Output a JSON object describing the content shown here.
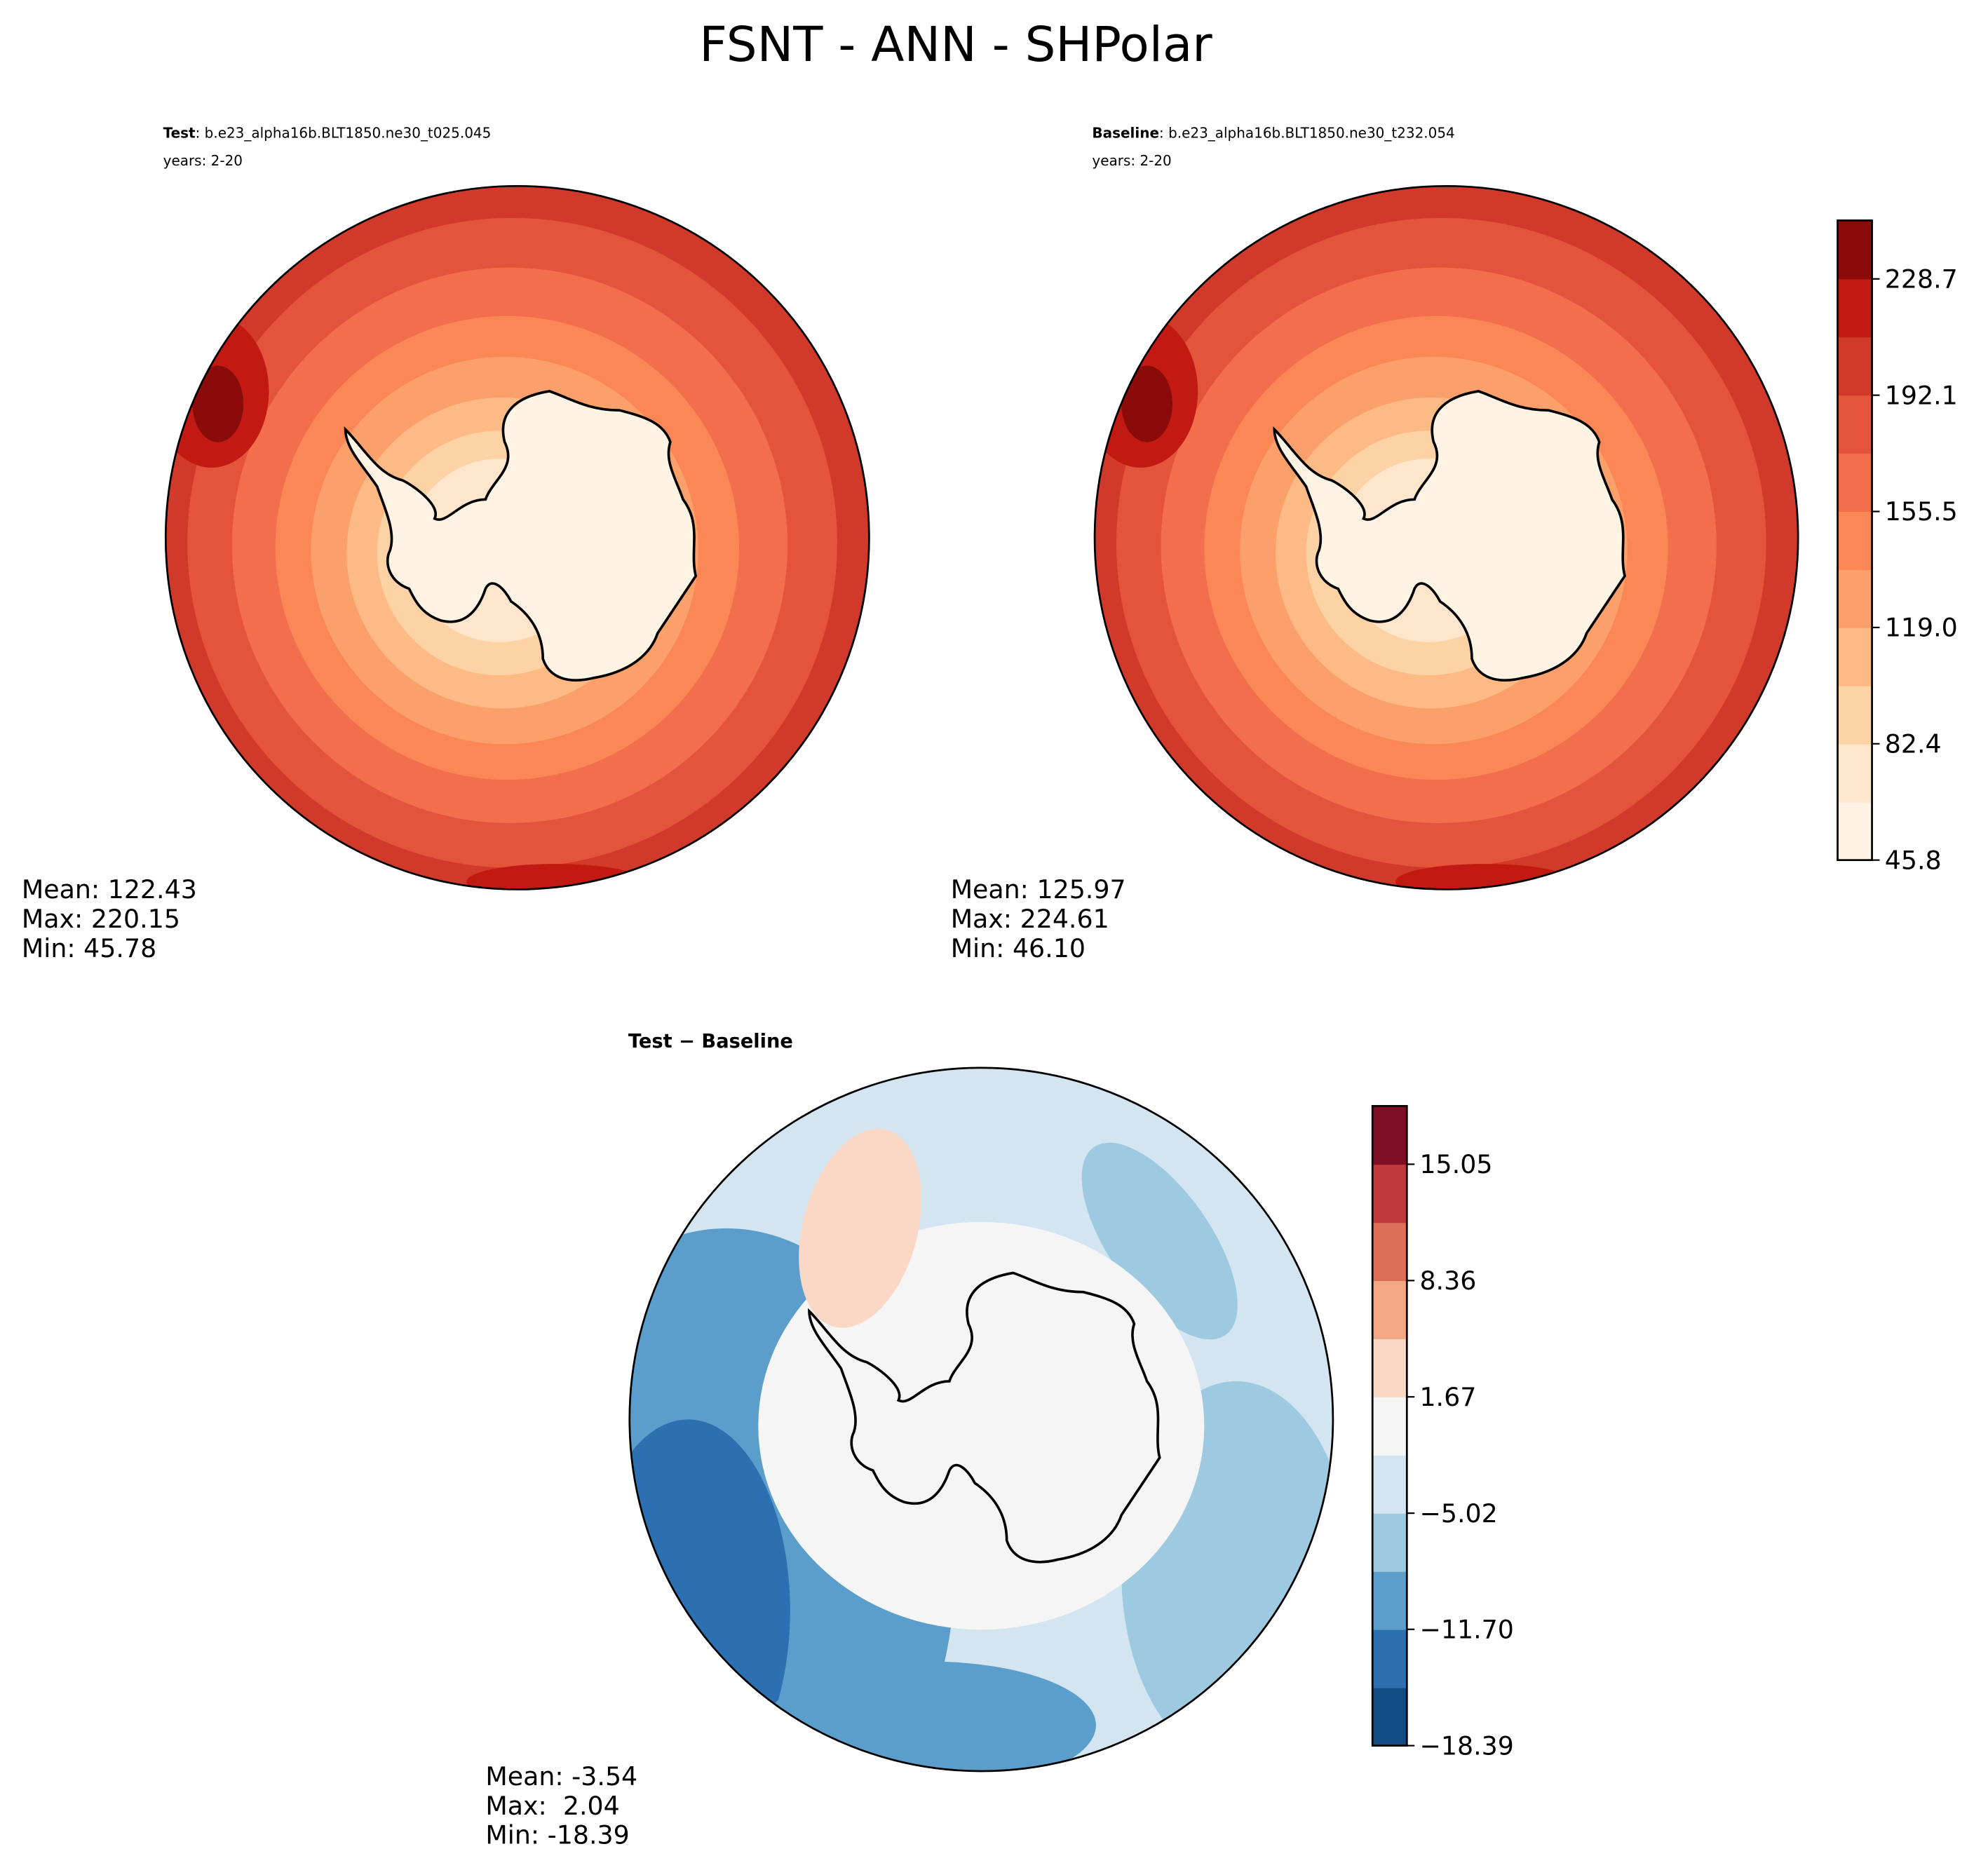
{
  "title": "FSNT - ANN - SHPolar",
  "chart_data": [
    {
      "type": "polar-contour",
      "label": "Test",
      "case": ": b.e23_alpha16b.BLT1850.ne30_t025.045",
      "years": "years: 2-20",
      "stats": [
        "Mean: 122.43",
        "Max: 220.15",
        "Min: 45.78"
      ],
      "colorbar": false,
      "colors": [
        "#fff3e3",
        "#fee6cc",
        "#fdd3a6",
        "#fdba84",
        "#fca06b",
        "#fb8656",
        "#f26e4c",
        "#e4533c",
        "#d1392b",
        "#c21a12",
        "#8b0a0a"
      ]
    },
    {
      "type": "polar-contour",
      "label": "Baseline",
      "case": ": b.e23_alpha16b.BLT1850.ne30_t232.054",
      "years": "years: 2-20",
      "stats": [
        "Mean: 125.97",
        "Max: 224.61",
        "Min: 46.10"
      ],
      "colorbar": true,
      "colors": [
        "#fff3e3",
        "#fee6cc",
        "#fdd3a6",
        "#fdba84",
        "#fca06b",
        "#fb8656",
        "#f26e4c",
        "#e4533c",
        "#d1392b",
        "#c21a12",
        "#8b0a0a"
      ],
      "clim": [
        45.8,
        247.1
      ],
      "cticks": [
        45.8,
        82.4,
        {
          "value": 119,
          "label": "119.0"
        },
        155.5,
        192.1,
        228.7
      ]
    },
    {
      "type": "polar-contour",
      "label": "Test − Baseline",
      "stats": [
        "Mean: -3.54",
        "Max:  2.04",
        "Min: -18.39"
      ],
      "colorbar": true,
      "colors": [
        "#134b83",
        "#2c70b1",
        "#5b9ecb",
        "#9ecae1",
        "#d3e5f1",
        "#f5f5f5",
        "#fbd8c6",
        "#f4a886",
        "#dd6f59",
        "#c23a3e",
        "#800e25"
      ],
      "clim": [
        -18.39,
        18.4
      ],
      "cticks": [
        {
          "value": -18.39,
          "label": "−18.39"
        },
        {
          "value": -11.7,
          "label": "−11.70"
        },
        {
          "value": -5.02,
          "label": "−5.02"
        },
        1.67,
        8.36,
        15.05
      ]
    }
  ]
}
